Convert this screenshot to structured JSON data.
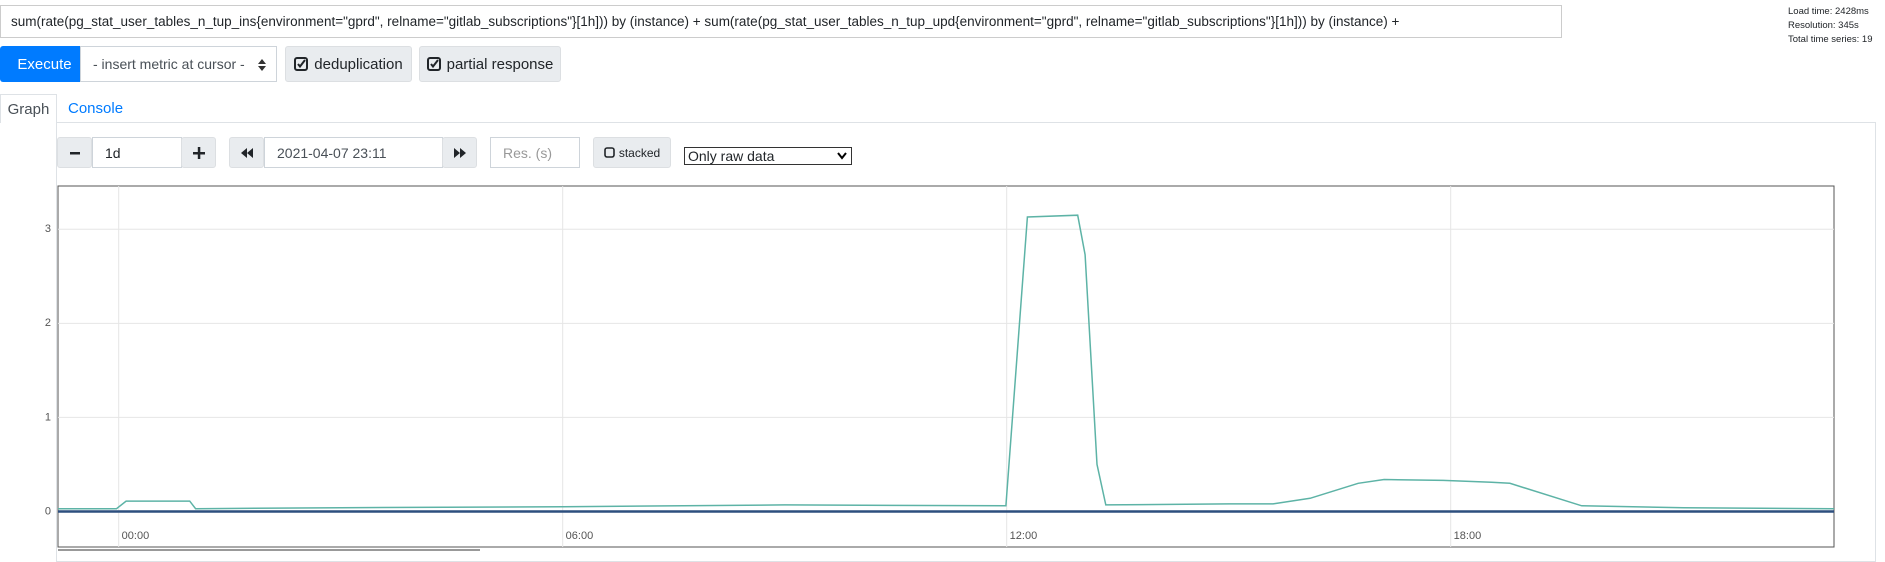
{
  "query": "sum(rate(pg_stat_user_tables_n_tup_ins{environment=\"gprd\", relname=\"gitlab_subscriptions\"}[1h])) by (instance) + sum(rate(pg_stat_user_tables_n_tup_upd{environment=\"gprd\", relname=\"gitlab_subscriptions\"}[1h])) by (instance) +",
  "stats": {
    "load_time": "Load time: 2428ms",
    "resolution": "Resolution: 345s",
    "total_series": "Total time series: 19"
  },
  "toolbar": {
    "execute": "Execute",
    "insert_metric": "- insert metric at cursor -",
    "deduplication": "deduplication",
    "partial_response": "partial response"
  },
  "tabs": [
    "Graph",
    "Console"
  ],
  "controls": {
    "range": "1d",
    "end_time": "2021-04-07 23:11",
    "resolution_placeholder": "Res. (s)",
    "stacked": "stacked",
    "downsampling": "Only raw data"
  },
  "chart_data": {
    "type": "line",
    "x": [
      -0.82,
      -0.03,
      0.1,
      0.96,
      1.04,
      3,
      6,
      9,
      11.99,
      12.28,
      12.96,
      13.06,
      13.22,
      13.34,
      15,
      15.6,
      16.1,
      16.75,
      17.1,
      17.9,
      18.55,
      18.8,
      19.77,
      21.15,
      23.18
    ],
    "series": [
      {
        "color": "#5db3a6",
        "values": [
          0.03,
          0.03,
          0.11,
          0.11,
          0.03,
          0.04,
          0.05,
          0.07,
          0.06,
          3.13,
          3.15,
          2.73,
          0.5,
          0.07,
          0.08,
          0.08,
          0.14,
          0.3,
          0.34,
          0.33,
          0.31,
          0.3,
          0.06,
          0.04,
          0.03
        ]
      },
      {
        "color": "#2d4f7e",
        "values": [
          0,
          0,
          0,
          0,
          0,
          0,
          0,
          0,
          0,
          0,
          0,
          0,
          0,
          0,
          0,
          0,
          0,
          0,
          0,
          0,
          0,
          0,
          0,
          0,
          0
        ]
      }
    ],
    "xlim": [
      -0.82,
      23.18
    ],
    "xticks": [
      {
        "value": 0,
        "label": "00:00"
      },
      {
        "value": 6,
        "label": "06:00"
      },
      {
        "value": 12,
        "label": "12:00"
      },
      {
        "value": 18,
        "label": "18:00"
      }
    ],
    "ylim": [
      -0.08,
      3.46
    ],
    "yticks": [
      0,
      1,
      2,
      3
    ],
    "grid": true
  }
}
